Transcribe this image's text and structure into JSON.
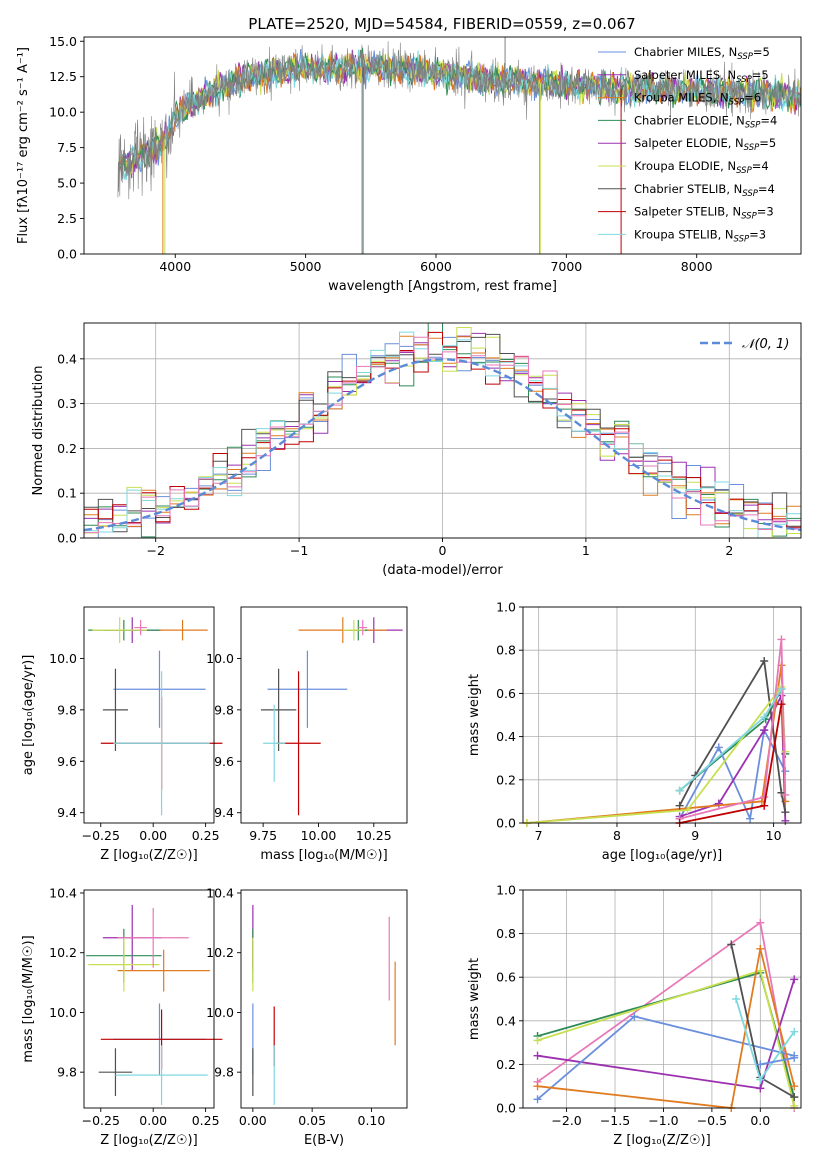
{
  "title": "PLATE=2520, MJD=54584, FIBERID=0559, z=0.067",
  "colors": {
    "Chabrier MILES": "#6a8fdc",
    "Salpeter MILES": "#9b30b0",
    "Kroupa MILES": "#e07b20",
    "Chabrier ELODIE": "#2e8b57",
    "Salpeter ELODIE": "#9b30b0",
    "Kroupa ELODIE": "#c8e050",
    "Chabrier STELIB": "#505050",
    "Salpeter STELIB": "#c00000",
    "Kroupa STELIB": "#7fd8e0",
    "pink": "#e878b8",
    "data": "#808080",
    "normal": "#5b8bd8"
  },
  "chart_data": [
    {
      "type": "line",
      "xlabel": "wavelength [Angstrom, rest frame]",
      "ylabel": "Flux [fλ10⁻¹⁷ erg cm⁻² s⁻¹ A⁻¹]",
      "xlim": [
        3300,
        8800
      ],
      "ylim": [
        0,
        15.3
      ],
      "xticks": [
        4000,
        5000,
        6000,
        7000,
        8000
      ],
      "yticks": [
        0.0,
        2.5,
        5.0,
        7.5,
        10.0,
        12.5,
        15.0
      ],
      "continuum": [
        [
          3570,
          6.2
        ],
        [
          3700,
          6.8
        ],
        [
          3900,
          7.8
        ],
        [
          4000,
          9.5
        ],
        [
          4100,
          10.6
        ],
        [
          4300,
          11.5
        ],
        [
          4500,
          12.3
        ],
        [
          4800,
          12.9
        ],
        [
          5000,
          13.1
        ],
        [
          5500,
          13.2
        ],
        [
          6000,
          12.8
        ],
        [
          6500,
          12.2
        ],
        [
          7000,
          11.9
        ],
        [
          7500,
          11.6
        ],
        [
          8000,
          11.5
        ],
        [
          8500,
          11.3
        ],
        [
          8800,
          11.1
        ]
      ],
      "legend": [
        {
          "name": "Chabrier MILES",
          "n": "5"
        },
        {
          "name": "Salpeter MILES",
          "n": "5"
        },
        {
          "name": "Kroupa MILES",
          "n": "6"
        },
        {
          "name": "Chabrier ELODIE",
          "n": "4"
        },
        {
          "name": "Salpeter ELODIE",
          "n": "5"
        },
        {
          "name": "Kroupa ELODIE",
          "n": "4"
        },
        {
          "name": "Chabrier STELIB",
          "n": "4"
        },
        {
          "name": "Salpeter STELIB",
          "n": "3"
        },
        {
          "name": "Kroupa STELIB",
          "n": "3"
        }
      ],
      "legend_placement": "top-right"
    },
    {
      "type": "line",
      "xlabel": "(data-model)/error",
      "ylabel": "Normed distribution",
      "xlim": [
        -2.5,
        2.5
      ],
      "ylim": [
        0,
        0.48
      ],
      "xticks": [
        -2,
        -1,
        0,
        1,
        2
      ],
      "yticks": [
        0.0,
        0.1,
        0.2,
        0.3,
        0.4
      ],
      "grid": true,
      "series": [
        {
          "name": "𝒩(0, 1)",
          "style": "dashed"
        }
      ],
      "histogram_bin_width": 0.1,
      "legend_placement": "top-right"
    },
    {
      "type": "scatter",
      "xlabel": "Z [log₁₀(Z/Z☉)]",
      "ylabel": "age  [log₁₀(age/yr)]",
      "xlim": [
        -0.33,
        0.29
      ],
      "ylim": [
        9.36,
        10.2
      ],
      "xticks": [
        -0.25,
        0.0,
        0.25
      ],
      "yticks": [
        9.4,
        9.6,
        9.8,
        10.0
      ],
      "points": [
        {
          "c": "#6a8fdc",
          "x": 0.03,
          "y": 9.88,
          "ex": 0.22,
          "ey": 0.15
        },
        {
          "c": "#9b30b0",
          "x": -0.1,
          "y": 10.11,
          "ex": 0.14,
          "ey": 0.05
        },
        {
          "c": "#e07b20",
          "x": 0.14,
          "y": 10.11,
          "ex": 0.12,
          "ey": 0.04
        },
        {
          "c": "#2e8b57",
          "x": -0.14,
          "y": 10.11,
          "ex": 0.17,
          "ey": 0.04
        },
        {
          "c": "#c8e050",
          "x": -0.16,
          "y": 10.11,
          "ex": 0.13,
          "ey": 0.05
        },
        {
          "c": "#e878b8",
          "x": -0.06,
          "y": 10.12,
          "ex": 0.03,
          "ey": 0.03
        },
        {
          "c": "#505050",
          "x": -0.18,
          "y": 9.8,
          "ex": 0.06,
          "ey": 0.16
        },
        {
          "c": "#c00000",
          "x": 0.04,
          "y": 9.67,
          "ex": 0.29,
          "ey": 0.18
        },
        {
          "c": "#7fd8e0",
          "x": 0.04,
          "y": 9.67,
          "ex": 0.23,
          "ey": 0.28
        }
      ]
    },
    {
      "type": "scatter",
      "xlabel": "mass [log₁₀(M/M☉)]",
      "ylabel": "",
      "xlim": [
        9.65,
        10.4
      ],
      "ylim": [
        9.36,
        10.2
      ],
      "xticks": [
        9.75,
        10.0,
        10.25
      ],
      "yticks": [
        9.4,
        9.6,
        9.8,
        10.0
      ],
      "points": [
        {
          "c": "#6a8fdc",
          "x": 9.95,
          "y": 9.88,
          "ex": 0.18,
          "ey": 0.15
        },
        {
          "c": "#9b30b0",
          "x": 10.25,
          "y": 10.11,
          "ex": 0.13,
          "ey": 0.05
        },
        {
          "c": "#e07b20",
          "x": 10.11,
          "y": 10.11,
          "ex": 0.2,
          "ey": 0.05
        },
        {
          "c": "#2e8b57",
          "x": 10.18,
          "y": 10.11,
          "ex": 0.04,
          "ey": 0.04
        },
        {
          "c": "#c8e050",
          "x": 10.16,
          "y": 10.11,
          "ex": 0.05,
          "ey": 0.04
        },
        {
          "c": "#e878b8",
          "x": 10.2,
          "y": 10.12,
          "ex": 0.02,
          "ey": 0.03
        },
        {
          "c": "#505050",
          "x": 9.82,
          "y": 9.8,
          "ex": 0.08,
          "ey": 0.16
        },
        {
          "c": "#c00000",
          "x": 9.91,
          "y": 9.67,
          "ex": 0.1,
          "ey": 0.28
        },
        {
          "c": "#7fd8e0",
          "x": 9.8,
          "y": 9.67,
          "ex": 0.05,
          "ey": 0.15
        }
      ]
    },
    {
      "type": "line",
      "xlabel": "age  [log₁₀(age/yr)]",
      "ylabel": "mass weight",
      "xlim": [
        6.8,
        10.35
      ],
      "ylim": [
        0,
        1.0
      ],
      "xticks": [
        7,
        8,
        9,
        10
      ],
      "yticks": [
        0.0,
        0.2,
        0.4,
        0.6,
        0.8,
        1.0
      ],
      "grid": true,
      "series": [
        {
          "c": "#2e8b57",
          "pts": [
            [
              8.8,
              0.15
            ],
            [
              9.9,
              0.48
            ],
            [
              10.1,
              0.62
            ],
            [
              10.15,
              0.32
            ]
          ]
        },
        {
          "c": "#6a8fdc",
          "pts": [
            [
              8.8,
              0.02
            ],
            [
              9.3,
              0.35
            ],
            [
              9.7,
              0.02
            ],
            [
              9.88,
              0.43
            ],
            [
              10.15,
              0.24
            ]
          ]
        },
        {
          "c": "#9b30b0",
          "pts": [
            [
              8.8,
              0.03
            ],
            [
              9.3,
              0.09
            ],
            [
              9.88,
              0.43
            ],
            [
              10.1,
              0.59
            ],
            [
              10.15,
              0.01
            ]
          ]
        },
        {
          "c": "#e07b20",
          "pts": [
            [
              6.85,
              0.0
            ],
            [
              9.85,
              0.1
            ],
            [
              10.1,
              0.73
            ],
            [
              10.15,
              0.1
            ]
          ]
        },
        {
          "c": "#505050",
          "pts": [
            [
              8.8,
              0.08
            ],
            [
              9.0,
              0.22
            ],
            [
              9.88,
              0.75
            ],
            [
              10.1,
              0.14
            ],
            [
              10.15,
              0.05
            ]
          ]
        },
        {
          "c": "#c8e050",
          "pts": [
            [
              6.85,
              0.0
            ],
            [
              8.9,
              0.06
            ],
            [
              10.1,
              0.63
            ],
            [
              10.15,
              0.33
            ]
          ]
        },
        {
          "c": "#e878b8",
          "pts": [
            [
              8.8,
              0.02
            ],
            [
              9.88,
              0.12
            ],
            [
              10.1,
              0.85
            ],
            [
              10.15,
              0.13
            ]
          ]
        },
        {
          "c": "#7fd8e0",
          "pts": [
            [
              8.8,
              0.15
            ],
            [
              9.88,
              0.49
            ],
            [
              10.1,
              0.62
            ]
          ]
        },
        {
          "c": "#c00000",
          "pts": [
            [
              8.8,
              0.0
            ],
            [
              9.88,
              0.08
            ],
            [
              10.1,
              0.55
            ]
          ]
        }
      ]
    },
    {
      "type": "scatter",
      "xlabel": "Z [log₁₀(Z/Z☉)]",
      "ylabel": "mass [log₁₀(M/M☉)]",
      "xlim": [
        -0.33,
        0.29
      ],
      "ylim": [
        9.68,
        10.41
      ],
      "xticks": [
        -0.25,
        0.0,
        0.25
      ],
      "yticks": [
        9.8,
        10.0,
        10.2,
        10.4
      ],
      "points": [
        {
          "c": "#6a8fdc",
          "x": 0.03,
          "y": 9.91,
          "ex": 0.22,
          "ey": 0.12
        },
        {
          "c": "#9b30b0",
          "x": -0.1,
          "y": 10.25,
          "ex": 0.14,
          "ey": 0.11
        },
        {
          "c": "#e07b20",
          "x": 0.05,
          "y": 10.14,
          "ex": 0.22,
          "ey": 0.07
        },
        {
          "c": "#2e8b57",
          "x": -0.14,
          "y": 10.19,
          "ex": 0.18,
          "ey": 0.09
        },
        {
          "c": "#c8e050",
          "x": -0.14,
          "y": 10.16,
          "ex": 0.17,
          "ey": 0.09
        },
        {
          "c": "#e878b8",
          "x": 0.0,
          "y": 10.25,
          "ex": 0.17,
          "ey": 0.1
        },
        {
          "c": "#505050",
          "x": -0.18,
          "y": 9.8,
          "ex": 0.08,
          "ey": 0.08
        },
        {
          "c": "#c00000",
          "x": 0.04,
          "y": 9.91,
          "ex": 0.29,
          "ey": 0.1
        },
        {
          "c": "#7fd8e0",
          "x": 0.04,
          "y": 9.79,
          "ex": 0.22,
          "ey": 0.1
        }
      ]
    },
    {
      "type": "scatter",
      "xlabel": "E(B-V)",
      "ylabel": "",
      "xlim": [
        -0.01,
        0.13
      ],
      "ylim": [
        9.68,
        10.41
      ],
      "xticks": [
        0.0,
        0.05,
        0.1
      ],
      "yticks": [
        9.8,
        10.0,
        10.2,
        10.4
      ],
      "points": [
        {
          "c": "#6a8fdc",
          "x": 0.0,
          "y": 9.91,
          "ex": 0.0,
          "ey": 0.12
        },
        {
          "c": "#9b30b0",
          "x": 0.0,
          "y": 10.25,
          "ex": 0.0,
          "ey": 0.11
        },
        {
          "c": "#e07b20",
          "x": 0.12,
          "y": 10.03,
          "ex": 0.0,
          "ey": 0.14
        },
        {
          "c": "#2e8b57",
          "x": 0.0,
          "y": 10.19,
          "ex": 0.0,
          "ey": 0.09
        },
        {
          "c": "#c8e050",
          "x": 0.0,
          "y": 10.16,
          "ex": 0.0,
          "ey": 0.09
        },
        {
          "c": "#e878b8",
          "x": 0.115,
          "y": 10.18,
          "ex": 0.0,
          "ey": 0.14
        },
        {
          "c": "#505050",
          "x": 0.0,
          "y": 9.8,
          "ex": 0.0,
          "ey": 0.08
        },
        {
          "c": "#c00000",
          "x": 0.018,
          "y": 9.92,
          "ex": 0.0,
          "ey": 0.1
        },
        {
          "c": "#7fd8e0",
          "x": 0.018,
          "y": 9.79,
          "ex": 0.0,
          "ey": 0.1
        }
      ]
    },
    {
      "type": "line",
      "xlabel": "Z [log₁₀(Z/Z☉)]",
      "ylabel": "mass weight",
      "xlim": [
        -2.45,
        0.42
      ],
      "ylim": [
        0,
        1.0
      ],
      "xticks": [
        -2.0,
        -1.5,
        -1.0,
        -0.5,
        0.0
      ],
      "yticks": [
        0.0,
        0.2,
        0.4,
        0.6,
        0.8,
        1.0
      ],
      "grid": true,
      "series": [
        {
          "c": "#e878b8",
          "pts": [
            [
              -2.3,
              0.12
            ],
            [
              0.0,
              0.85
            ],
            [
              0.35,
              0.0
            ]
          ]
        },
        {
          "c": "#2e8b57",
          "pts": [
            [
              -2.3,
              0.33
            ],
            [
              0.0,
              0.62
            ],
            [
              0.35,
              0.05
            ]
          ]
        },
        {
          "c": "#c8e050",
          "pts": [
            [
              -2.3,
              0.31
            ],
            [
              0.0,
              0.63
            ],
            [
              0.35,
              0.01
            ]
          ]
        },
        {
          "c": "#9b30b0",
          "pts": [
            [
              -2.3,
              0.24
            ],
            [
              0.0,
              0.09
            ],
            [
              0.35,
              0.59
            ]
          ]
        },
        {
          "c": "#6a8fdc",
          "pts": [
            [
              -2.3,
              0.04
            ],
            [
              -1.3,
              0.42
            ],
            [
              0.35,
              0.24
            ]
          ]
        },
        {
          "c": "#e07b20",
          "pts": [
            [
              -2.3,
              0.1
            ],
            [
              -0.3,
              0.0
            ],
            [
              0.0,
              0.73
            ],
            [
              0.35,
              0.1
            ]
          ]
        },
        {
          "c": "#505050",
          "pts": [
            [
              -0.3,
              0.75
            ],
            [
              0.0,
              0.14
            ],
            [
              0.35,
              0.05
            ]
          ]
        },
        {
          "c": "#7fd8e0",
          "pts": [
            [
              -0.25,
              0.5
            ],
            [
              0.0,
              0.13
            ],
            [
              0.35,
              0.35
            ]
          ]
        },
        {
          "c": "#6a8fdc",
          "pts": [
            [
              0.0,
              0.2
            ],
            [
              0.35,
              0.23
            ]
          ]
        }
      ]
    }
  ]
}
